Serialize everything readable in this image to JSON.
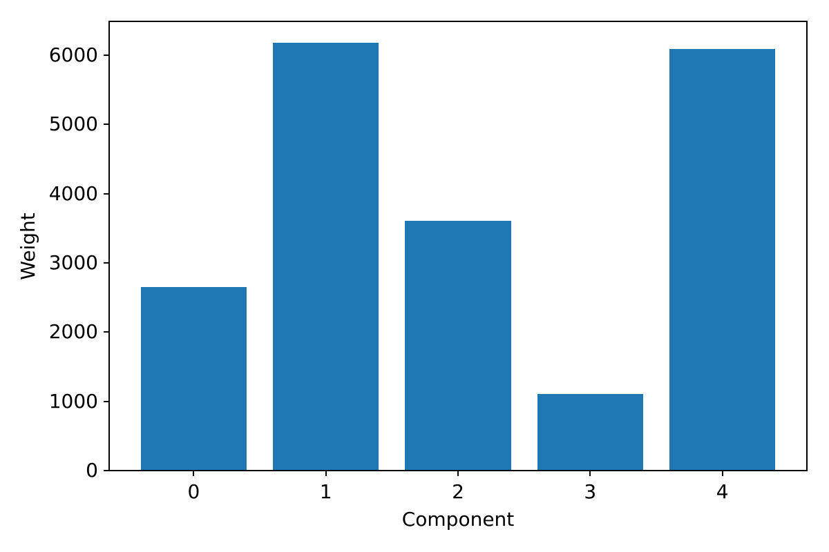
{
  "chart_data": {
    "type": "bar",
    "title": "",
    "xlabel": "Component",
    "ylabel": "Weight",
    "categories": [
      "0",
      "1",
      "2",
      "3",
      "4"
    ],
    "values": [
      2650,
      6180,
      3610,
      1110,
      6090
    ],
    "yticks": [
      0,
      1000,
      2000,
      3000,
      4000,
      5000,
      6000
    ],
    "ylim": [
      0,
      6489
    ],
    "xlim": [
      -0.64,
      4.64
    ],
    "bar_width": 0.8,
    "bar_color": "#1f77b4",
    "axis_color": "#000000",
    "grid": false,
    "legend": "none"
  }
}
